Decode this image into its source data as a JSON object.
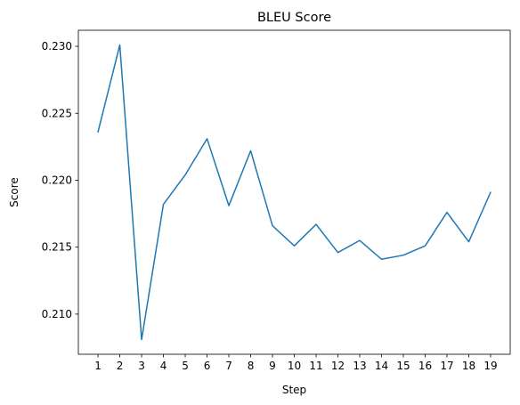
{
  "chart_data": {
    "type": "line",
    "title": "BLEU Score",
    "xlabel": "Step",
    "ylabel": "Score",
    "x": [
      1,
      2,
      3,
      4,
      5,
      6,
      7,
      8,
      9,
      10,
      11,
      12,
      13,
      14,
      15,
      16,
      17,
      18,
      19
    ],
    "series": [
      {
        "values": [
          0.2236,
          0.2301,
          0.2081,
          0.2182,
          0.2204,
          0.2231,
          0.2181,
          0.2222,
          0.2166,
          0.2151,
          0.2167,
          0.2146,
          0.2155,
          0.2141,
          0.2144,
          0.2151,
          0.2176,
          0.2154,
          0.2191
        ],
        "color": "#1f77b4"
      }
    ],
    "xticks": [
      "1",
      "2",
      "3",
      "4",
      "5",
      "6",
      "7",
      "8",
      "9",
      "10",
      "11",
      "12",
      "13",
      "14",
      "15",
      "16",
      "17",
      "18",
      "19"
    ],
    "yticks": [
      "0.210",
      "0.215",
      "0.220",
      "0.225",
      "0.230"
    ],
    "xlim": [
      0.1,
      19.9
    ],
    "ylim": [
      0.207,
      0.2312
    ],
    "grid": false
  }
}
